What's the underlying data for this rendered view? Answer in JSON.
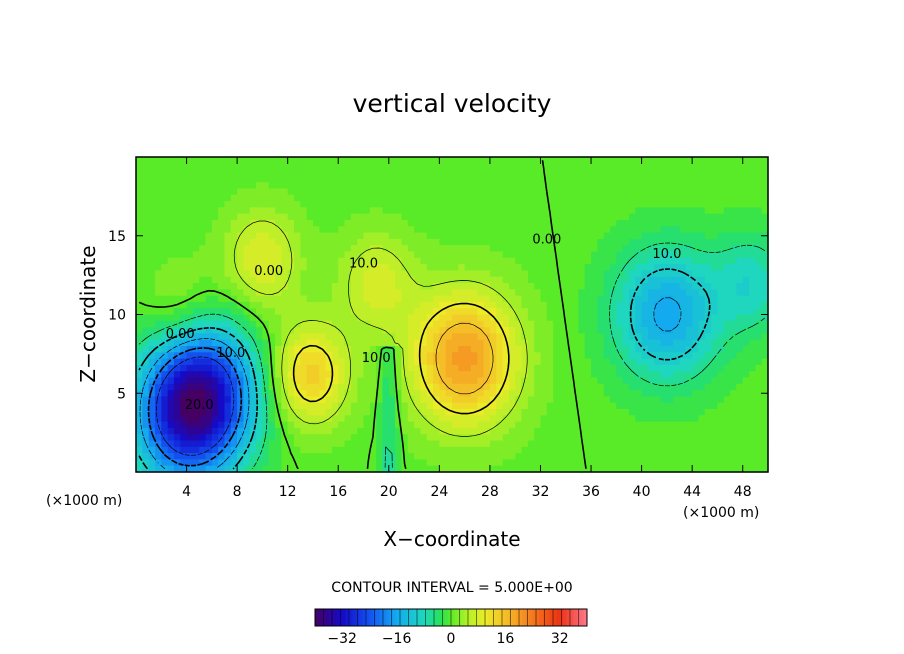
{
  "chart_data": {
    "type": "contour",
    "title": "vertical velocity",
    "xlabel": "X−coordinate",
    "ylabel": "Z−coordinate",
    "x_unit_left": "(×1000 m)",
    "x_unit_right": "(×1000 m)",
    "xlim": [
      0,
      50
    ],
    "ylim": [
      0,
      20
    ],
    "x_ticks": [
      4,
      8,
      12,
      16,
      20,
      24,
      28,
      32,
      36,
      40,
      44,
      48
    ],
    "x_tick_labels": [
      "4",
      "8",
      "12",
      "16",
      "20",
      "24",
      "28",
      "32",
      "36",
      "40",
      "44",
      "48"
    ],
    "y_ticks": [
      5,
      10,
      15
    ],
    "y_tick_labels": [
      "5",
      "10",
      "15"
    ],
    "contour_interval_text": "CONTOUR INTERVAL = 5.000E+00",
    "contour_interval": 5.0,
    "colorbar": {
      "range": [
        -40,
        40
      ],
      "tick_values": [
        -32,
        -16,
        0,
        16,
        32
      ],
      "tick_labels": [
        "−32",
        "−16",
        "0",
        "16",
        "32"
      ]
    },
    "contour_labels": [
      {
        "text": "10.0",
        "x": 18.0,
        "z": 13.0
      },
      {
        "text": "0.00",
        "x": 10.5,
        "z": 12.5
      },
      {
        "text": "10.0",
        "x": 19.0,
        "z": 7.0
      },
      {
        "text": "0.00",
        "x": 32.5,
        "z": 14.5
      },
      {
        "text": "10.0",
        "x": 42.0,
        "z": 13.6
      },
      {
        "text": "0.00",
        "x": 3.5,
        "z": 8.5
      },
      {
        "text": "10.0",
        "x": 7.5,
        "z": 7.3
      },
      {
        "text": "20.0",
        "x": 5.0,
        "z": 4.0
      }
    ],
    "features": [
      {
        "kind": "updraft",
        "x": 13.8,
        "z": 6.2,
        "peak": 14
      },
      {
        "kind": "updraft",
        "x": 19.0,
        "z": 12.0,
        "peak": 8
      },
      {
        "kind": "updraft",
        "x": 26.0,
        "z": 7.2,
        "peak": 20
      },
      {
        "kind": "updraft",
        "x": 10.0,
        "z": 13.5,
        "peak": 9
      },
      {
        "kind": "downdraft",
        "x": 5.2,
        "z": 5.2,
        "peak": -28
      },
      {
        "kind": "downdraft",
        "x": 3.8,
        "z": 2.8,
        "peak": -18
      },
      {
        "kind": "downdraft",
        "x": 42.0,
        "z": 10.0,
        "peak": -16
      },
      {
        "kind": "downdraft",
        "x": 48.8,
        "z": 12.0,
        "peak": -8
      },
      {
        "kind": "updraft",
        "x": 3.5,
        "z": 10.0,
        "peak": 5
      }
    ]
  }
}
